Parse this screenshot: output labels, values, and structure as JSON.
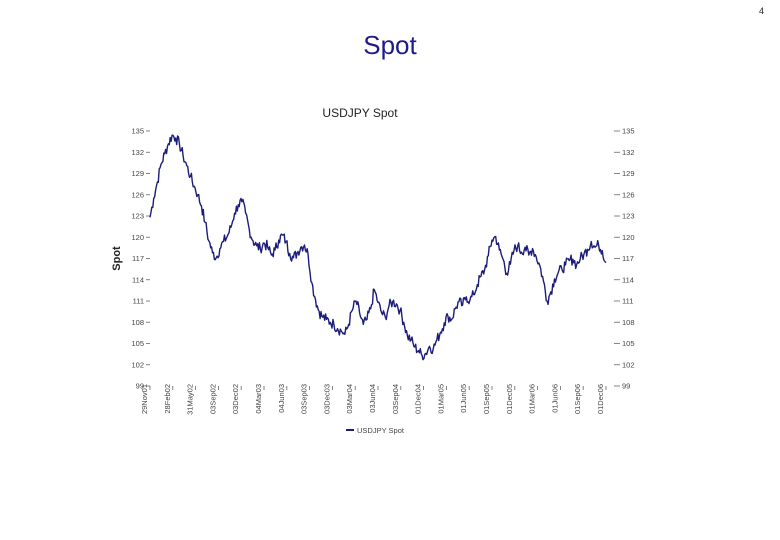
{
  "page": {
    "number": "4",
    "title": "Spot"
  },
  "chart_data": {
    "type": "line",
    "title": "USDJPY Spot",
    "ylabel": "Spot",
    "xlabel": "",
    "ylim": [
      99,
      135
    ],
    "yticks": [
      135,
      132,
      129,
      126,
      123,
      120,
      117,
      114,
      111,
      108,
      105,
      102,
      99
    ],
    "yticks_labels": [
      "135",
      "132",
      "129",
      "126",
      "123",
      "120",
      "117",
      "114",
      "111",
      "108",
      "105",
      "102",
      "99"
    ],
    "xticks": [
      "29Nov01",
      "28Feb02",
      "31May02",
      "03Sep02",
      "03Dec02",
      "04Mar03",
      "04Jun03",
      "03Sep03",
      "03Dec03",
      "03Mar04",
      "03Jun04",
      "03Sep04",
      "01Dec04",
      "01Mar05",
      "01Jun05",
      "01Sep05",
      "01Dec05",
      "01Mar06",
      "01Jun06",
      "01Sep06",
      "01Dec06"
    ],
    "legend": {
      "position": "bottom",
      "label": "USDJPY Spot"
    },
    "line_color": "#1c1c7a",
    "grid": false,
    "series": [
      {
        "name": "USDJPY Spot",
        "values": [
          122.8,
          125.5,
          127.8,
          130.3,
          131.8,
          133.2,
          134.4,
          134.0,
          133.2,
          131.5,
          130.1,
          128.6,
          127.2,
          126.0,
          124.4,
          122.1,
          119.5,
          117.8,
          117.1,
          118.4,
          119.4,
          120.1,
          121.4,
          123.4,
          124.6,
          125.0,
          123.4,
          121.1,
          119.5,
          118.8,
          118.4,
          119.2,
          118.6,
          117.5,
          118.2,
          119.6,
          120.3,
          119.4,
          117.7,
          117.1,
          117.8,
          118.6,
          118.9,
          117.6,
          113.6,
          111.2,
          109.5,
          108.7,
          108.4,
          108.0,
          107.7,
          107.1,
          106.8,
          106.3,
          107.7,
          109.7,
          111.0,
          109.3,
          107.7,
          108.4,
          109.9,
          112.6,
          110.8,
          109.3,
          108.7,
          110.3,
          110.9,
          110.6,
          109.7,
          108.0,
          106.1,
          105.5,
          104.5,
          104.0,
          103.3,
          103.6,
          104.6,
          104.2,
          105.5,
          106.6,
          107.9,
          108.9,
          108.4,
          109.9,
          110.9,
          110.4,
          111.6,
          111.1,
          111.9,
          113.3,
          114.5,
          115.4,
          117.4,
          119.6,
          120.1,
          118.2,
          116.9,
          114.9,
          116.2,
          118.2,
          118.8,
          117.9,
          118.6,
          117.5,
          118.4,
          117.3,
          116.0,
          113.8,
          111.0,
          112.3,
          114.1,
          115.0,
          115.5,
          116.1,
          116.7,
          116.9,
          116.1,
          117.0,
          117.6,
          118.3,
          119.4,
          118.6,
          118.9,
          118.1,
          116.4
        ]
      }
    ]
  }
}
